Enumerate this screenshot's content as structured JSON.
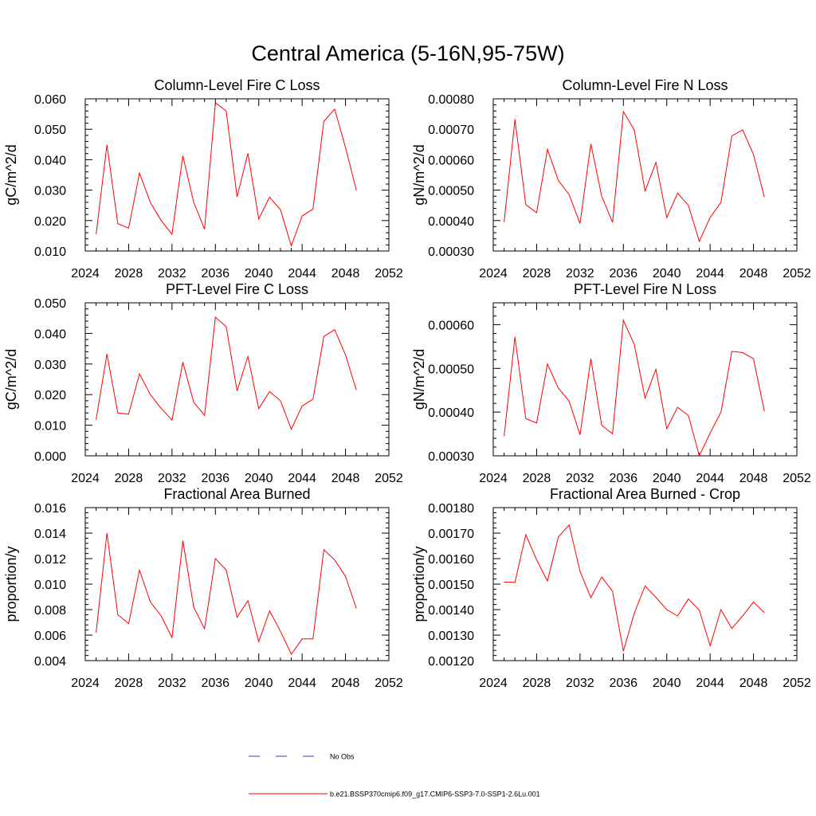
{
  "figure": {
    "title": "Central America (5-16N,95-75W)"
  },
  "legend": {
    "items": [
      {
        "label": "No Obs",
        "color": "#3a3acb",
        "dash": "dashed"
      },
      {
        "label": "b.e21.BSSP370cmip6.f09_g17.CMIP6-SSP3-7.0-SSP1-2.6Lu.001",
        "color": "#ff0000",
        "dash": "solid"
      }
    ]
  },
  "chart_data": [
    {
      "type": "line",
      "title": "Column-Level Fire C Loss",
      "xlabel": "",
      "ylabel": "gC/m^2/d",
      "xlim": [
        2024,
        2052
      ],
      "ylim": [
        0.01,
        0.06
      ],
      "xticks": [
        "2024",
        "2028",
        "2032",
        "2036",
        "2040",
        "2044",
        "2048",
        "2052"
      ],
      "yticks": [
        "0.010",
        "0.020",
        "0.030",
        "0.040",
        "0.050",
        "0.060"
      ],
      "grid": false,
      "x": [
        2025,
        2026,
        2027,
        2028,
        2029,
        2030,
        2031,
        2032,
        2033,
        2034,
        2035,
        2036,
        2037,
        2038,
        2039,
        2040,
        2041,
        2042,
        2043,
        2044,
        2045,
        2046,
        2047,
        2048,
        2049
      ],
      "series": [
        {
          "color": "#ff0000",
          "values": [
            0.0155,
            0.0449,
            0.019,
            0.0175,
            0.0356,
            0.026,
            0.02,
            0.0155,
            0.0413,
            0.026,
            0.0172,
            0.0587,
            0.056,
            0.0278,
            0.0421,
            0.0205,
            0.0277,
            0.0236,
            0.0117,
            0.0215,
            0.0238,
            0.0526,
            0.0566,
            0.044,
            0.03
          ]
        }
      ]
    },
    {
      "type": "line",
      "title": "Column-Level Fire N Loss",
      "xlabel": "",
      "ylabel": "gN/m^2/d",
      "xlim": [
        2024,
        2052
      ],
      "ylim": [
        0.0003,
        0.0008
      ],
      "xticks": [
        "2024",
        "2028",
        "2032",
        "2036",
        "2040",
        "2044",
        "2048",
        "2052"
      ],
      "yticks": [
        "0.00030",
        "0.00040",
        "0.00050",
        "0.00060",
        "0.00070",
        "0.00080"
      ],
      "grid": false,
      "x": [
        2025,
        2026,
        2027,
        2028,
        2029,
        2030,
        2031,
        2032,
        2033,
        2034,
        2035,
        2036,
        2037,
        2038,
        2039,
        2040,
        2041,
        2042,
        2043,
        2044,
        2045,
        2046,
        2047,
        2048,
        2049
      ],
      "series": [
        {
          "color": "#ff0000",
          "values": [
            0.000395,
            0.000732,
            0.000452,
            0.000426,
            0.000634,
            0.000532,
            0.000485,
            0.00039,
            0.000652,
            0.00048,
            0.000394,
            0.000758,
            0.000698,
            0.000497,
            0.000591,
            0.00041,
            0.00049,
            0.00045,
            0.000332,
            0.00041,
            0.00046,
            0.000678,
            0.000698,
            0.000617,
            0.000477
          ]
        }
      ]
    },
    {
      "type": "line",
      "title": "PFT-Level Fire C Loss",
      "xlabel": "",
      "ylabel": "gC/m^2/d",
      "xlim": [
        2024,
        2052
      ],
      "ylim": [
        0.0,
        0.05
      ],
      "xticks": [
        "2024",
        "2028",
        "2032",
        "2036",
        "2040",
        "2044",
        "2048",
        "2052"
      ],
      "yticks": [
        "0.000",
        "0.010",
        "0.020",
        "0.030",
        "0.040",
        "0.050"
      ],
      "grid": false,
      "x": [
        2025,
        2026,
        2027,
        2028,
        2029,
        2030,
        2031,
        2032,
        2033,
        2034,
        2035,
        2036,
        2037,
        2038,
        2039,
        2040,
        2041,
        2042,
        2043,
        2044,
        2045,
        2046,
        2047,
        2048,
        2049
      ],
      "series": [
        {
          "color": "#ff0000",
          "values": [
            0.0118,
            0.0333,
            0.014,
            0.0136,
            0.0268,
            0.02,
            0.0155,
            0.0117,
            0.0306,
            0.0175,
            0.0132,
            0.0453,
            0.0422,
            0.0212,
            0.0325,
            0.0154,
            0.021,
            0.018,
            0.0087,
            0.0163,
            0.0185,
            0.039,
            0.0412,
            0.033,
            0.0215
          ]
        }
      ]
    },
    {
      "type": "line",
      "title": "PFT-Level Fire N Loss",
      "xlabel": "",
      "ylabel": "gN/m^2/d",
      "xlim": [
        2024,
        2052
      ],
      "ylim": [
        0.0003,
        0.00065
      ],
      "xticks": [
        "2024",
        "2028",
        "2032",
        "2036",
        "2040",
        "2044",
        "2048",
        "2052"
      ],
      "yticks": [
        "0.00030",
        "0.00040",
        "0.00050",
        "0.00060"
      ],
      "grid": false,
      "x": [
        2025,
        2026,
        2027,
        2028,
        2029,
        2030,
        2031,
        2032,
        2033,
        2034,
        2035,
        2036,
        2037,
        2038,
        2039,
        2040,
        2041,
        2042,
        2043,
        2044,
        2045,
        2046,
        2047,
        2048,
        2049
      ],
      "series": [
        {
          "color": "#ff0000",
          "values": [
            0.000345,
            0.000572,
            0.000385,
            0.000375,
            0.00051,
            0.000455,
            0.000425,
            0.000348,
            0.000522,
            0.00037,
            0.00035,
            0.00061,
            0.000555,
            0.000432,
            0.000498,
            0.000362,
            0.000411,
            0.000392,
            0.0003,
            0.000352,
            0.0004,
            0.000539,
            0.000536,
            0.000522,
            0.000402
          ]
        }
      ]
    },
    {
      "type": "line",
      "title": "Fractional Area Burned",
      "xlabel": "",
      "ylabel": "proportion/y",
      "xlim": [
        2024,
        2052
      ],
      "ylim": [
        0.004,
        0.016
      ],
      "xticks": [
        "2024",
        "2028",
        "2032",
        "2036",
        "2040",
        "2044",
        "2048",
        "2052"
      ],
      "yticks": [
        "0.004",
        "0.006",
        "0.008",
        "0.010",
        "0.012",
        "0.014",
        "0.016"
      ],
      "grid": false,
      "x": [
        2025,
        2026,
        2027,
        2028,
        2029,
        2030,
        2031,
        2032,
        2033,
        2034,
        2035,
        2036,
        2037,
        2038,
        2039,
        2040,
        2041,
        2042,
        2043,
        2044,
        2045,
        2046,
        2047,
        2048,
        2049
      ],
      "series": [
        {
          "color": "#ff0000",
          "values": [
            0.0062,
            0.014,
            0.0076,
            0.0069,
            0.0111,
            0.0086,
            0.0075,
            0.0058,
            0.0134,
            0.0082,
            0.0065,
            0.012,
            0.0111,
            0.0074,
            0.0087,
            0.0055,
            0.0079,
            0.0063,
            0.0045,
            0.0057,
            0.0057,
            0.0127,
            0.0119,
            0.0106,
            0.0081
          ]
        }
      ]
    },
    {
      "type": "line",
      "title": "Fractional Area Burned - Crop",
      "xlabel": "",
      "ylabel": "proportion/y",
      "xlim": [
        2024,
        2052
      ],
      "ylim": [
        0.0012,
        0.0018
      ],
      "xticks": [
        "2024",
        "2028",
        "2032",
        "2036",
        "2040",
        "2044",
        "2048",
        "2052"
      ],
      "yticks": [
        "0.00120",
        "0.00130",
        "0.00140",
        "0.00150",
        "0.00160",
        "0.00170",
        "0.00180"
      ],
      "grid": false,
      "x": [
        2025,
        2026,
        2027,
        2028,
        2029,
        2030,
        2031,
        2032,
        2033,
        2034,
        2035,
        2036,
        2037,
        2038,
        2039,
        2040,
        2041,
        2042,
        2043,
        2044,
        2045,
        2046,
        2047,
        2048,
        2049
      ],
      "series": [
        {
          "color": "#ff0000",
          "values": [
            0.001508,
            0.001507,
            0.001694,
            0.001595,
            0.001512,
            0.001685,
            0.001732,
            0.00155,
            0.001447,
            0.001528,
            0.001472,
            0.001237,
            0.001385,
            0.001493,
            0.001448,
            0.0014,
            0.001375,
            0.001442,
            0.001398,
            0.001258,
            0.0014,
            0.001326,
            0.001375,
            0.00143,
            0.001388
          ]
        }
      ]
    }
  ]
}
